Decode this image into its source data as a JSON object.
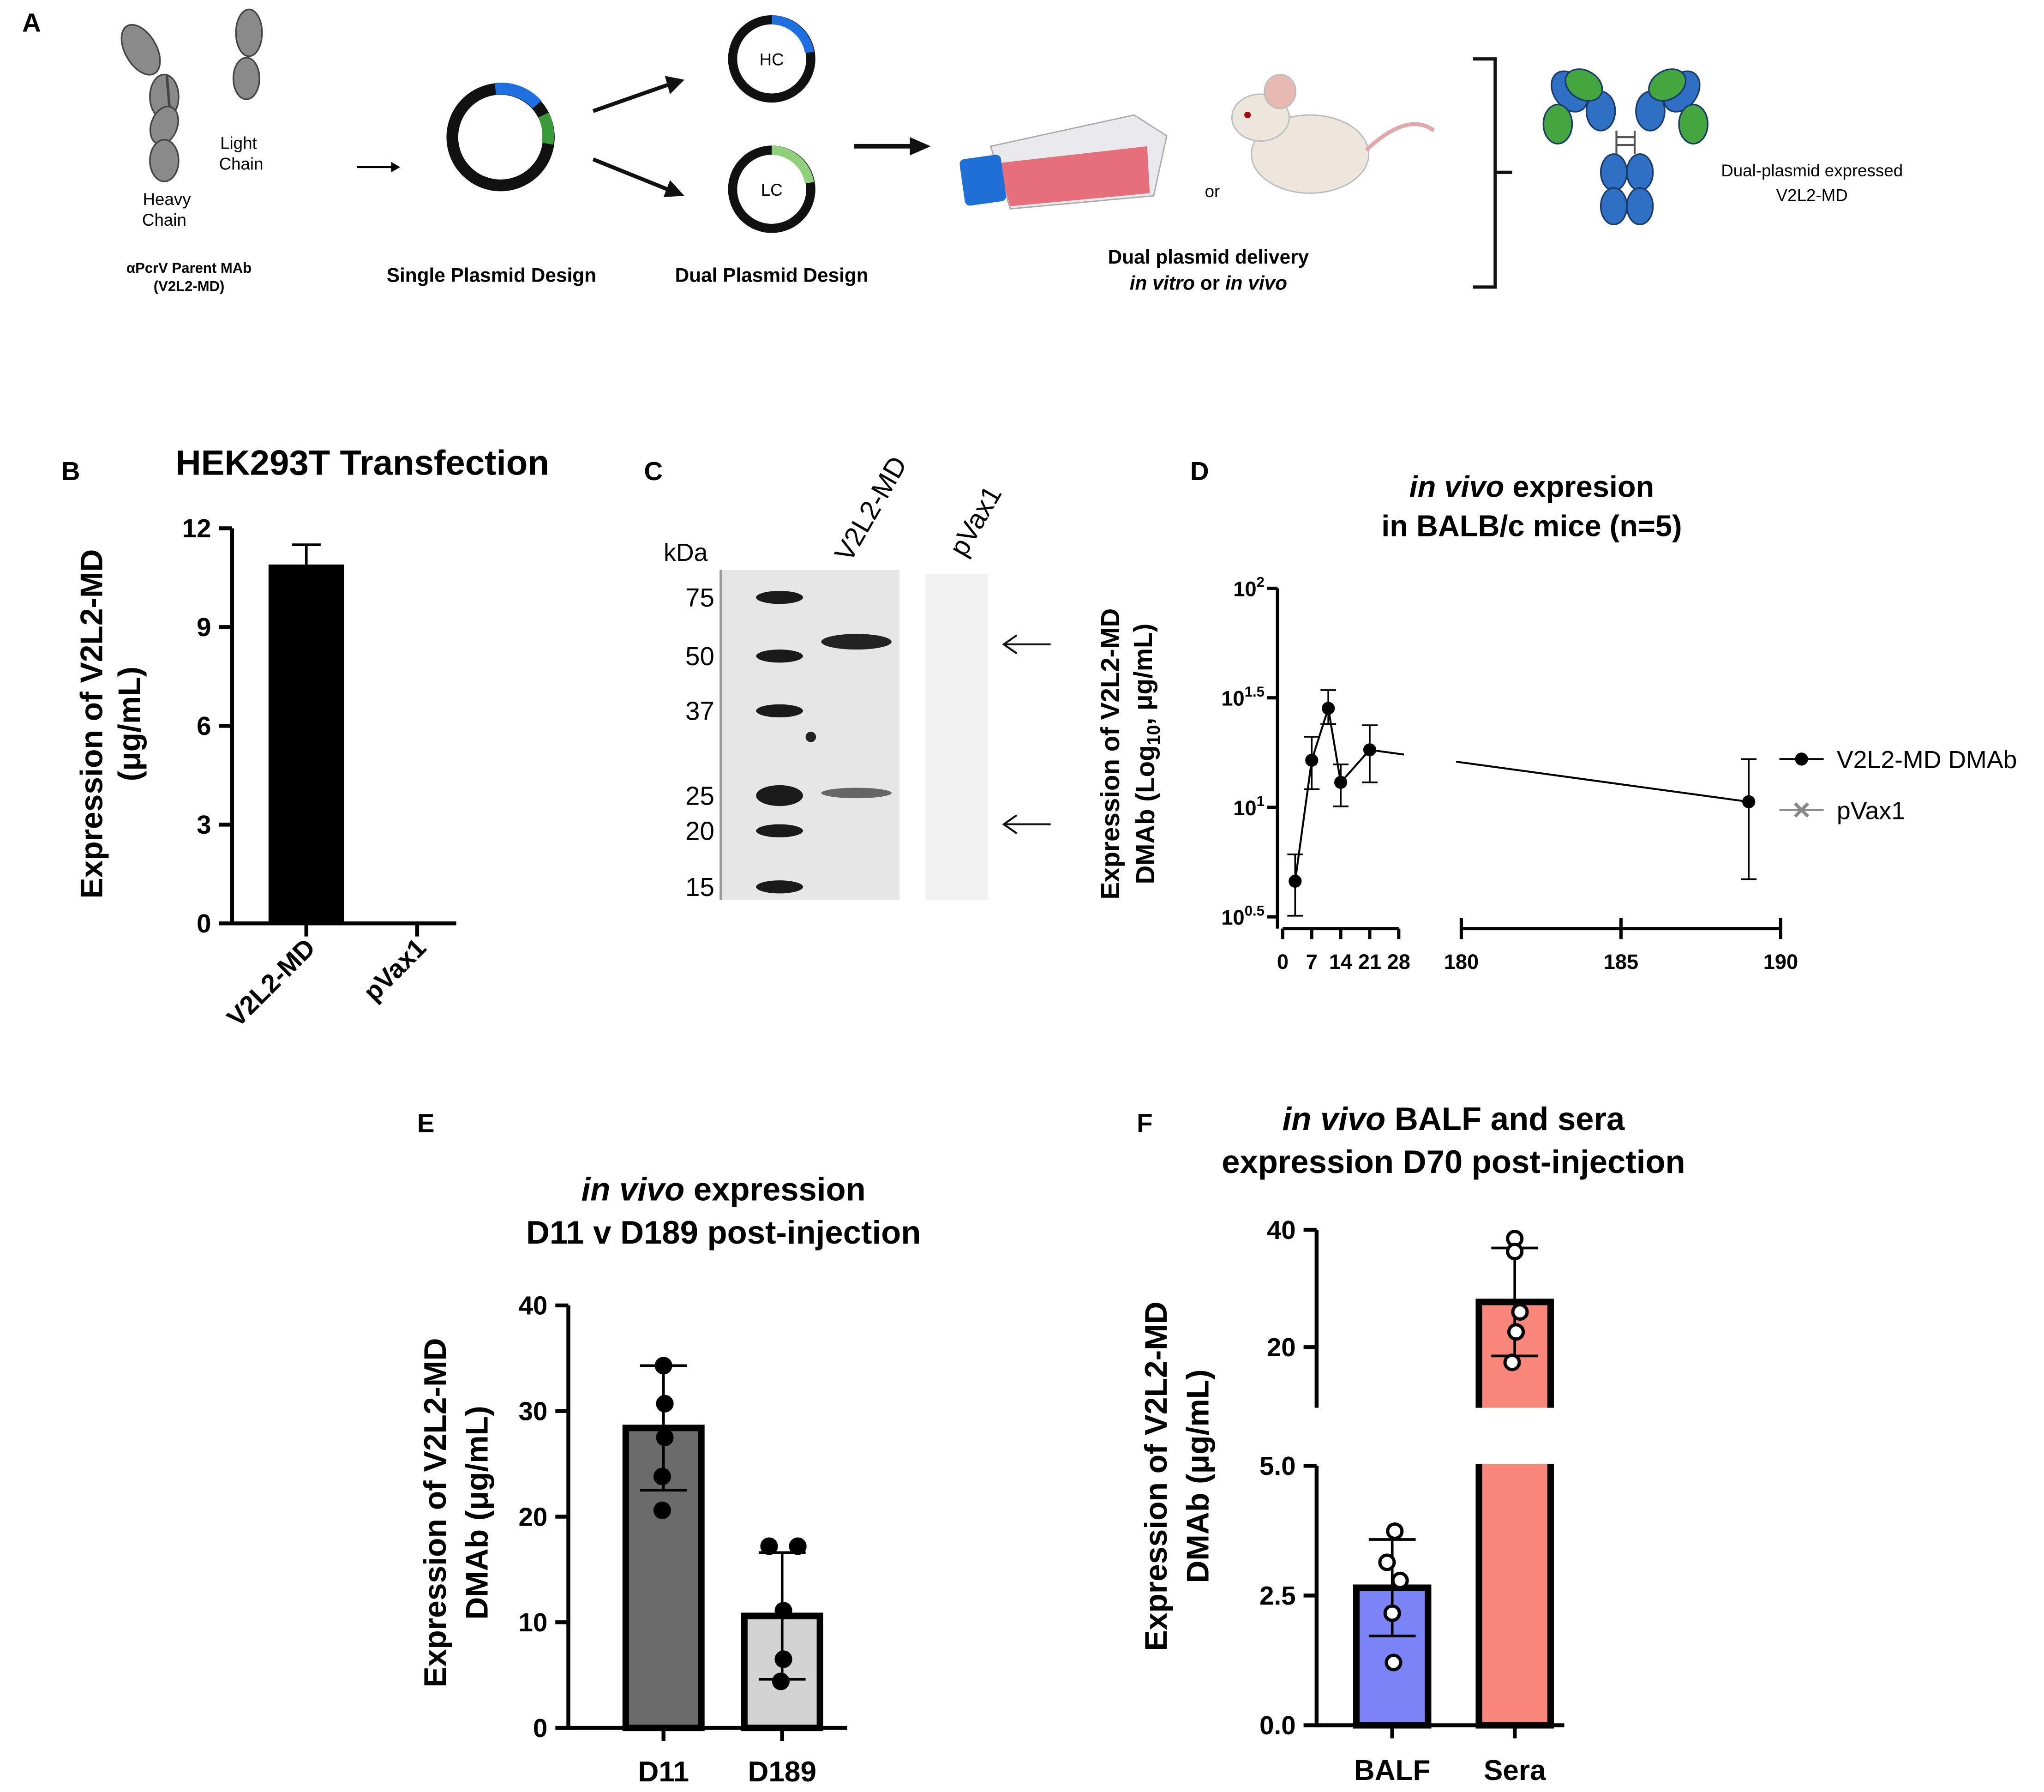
{
  "panel_labels": [
    "A",
    "B",
    "C",
    "D",
    "E",
    "F"
  ],
  "diagram": {
    "light_chain": [
      "Light",
      "Chain"
    ],
    "heavy_chain": [
      "Heavy",
      "Chain"
    ],
    "parent_mab": [
      "αPcrV Parent MAb",
      "(V2L2-MD)"
    ],
    "single_plasmid": "Single Plasmid Design",
    "hc": "HC",
    "lc": "LC",
    "dual_plasmid": "Dual Plasmid Design",
    "delivery": [
      [
        {
          "text": "Dual plasmid delivery"
        }
      ],
      [
        {
          "text": "in vitro",
          "italic": true
        },
        {
          "text": " or "
        },
        {
          "text": "in vivo",
          "italic": true
        }
      ]
    ],
    "or": "or",
    "expressed": [
      "Dual-plasmid expressed",
      "V2L2-MD"
    ]
  },
  "gel": {
    "unit": "kDa",
    "markers": [
      75,
      50,
      37,
      25,
      20,
      15
    ],
    "lanes": [
      "V2L2-MD",
      "pVax1"
    ]
  },
  "chart_data": [
    {
      "type": "bar",
      "title": [
        [
          {
            "text": "HEK293T Transfection"
          }
        ]
      ],
      "ylabel": [
        "Expression of V2L2-MD",
        "(μg/mL)"
      ],
      "categories": [
        "V2L2-MD",
        "pVax1"
      ],
      "values": [
        10.9,
        0
      ],
      "errors": [
        0.6,
        0
      ],
      "error_direction": "up",
      "colors": [
        "#000000",
        "#000000"
      ],
      "edgecolor": "#000000",
      "ylim": [
        0,
        12
      ],
      "yticks": [
        0,
        3,
        6,
        9,
        12
      ]
    },
    {
      "type": "line",
      "title": [
        [
          {
            "text": "in vivo",
            "italic": true
          },
          {
            "text": " expresion"
          }
        ],
        [
          {
            "text": "in BALB/c mice (n=5)"
          }
        ]
      ],
      "ylabel": [
        "Expression of V2L2-MD",
        [
          {
            "text": "DMAb (Log"
          },
          {
            "text": "10",
            "sub": true
          },
          {
            "text": ", μg/mL)"
          }
        ]
      ],
      "x": [
        3,
        7,
        11,
        14,
        21,
        189
      ],
      "xlim_segments": [
        [
          0,
          28
        ],
        [
          180,
          190
        ]
      ],
      "xticks": [
        0,
        7,
        14,
        21,
        28,
        180,
        185,
        190
      ],
      "log_y": true,
      "ylim": [
        3.1623,
        100
      ],
      "yticks": [
        {
          "value": 3.1623,
          "label": "10",
          "exponent": "0.5"
        },
        {
          "value": 10,
          "label": "10",
          "exponent": "1"
        },
        {
          "value": 31.623,
          "label": "10",
          "exponent": "1.5"
        },
        {
          "value": 100,
          "label": "10",
          "exponent": "2"
        }
      ],
      "legend": "right",
      "series": [
        {
          "name": "V2L2-MD DMAb",
          "color": "#000000",
          "marker": "o",
          "values": [
            4.6,
            16.4,
            28.3,
            13.0,
            18.3,
            10.6
          ],
          "yerr_lo": [
            3.2,
            12.1,
            24.0,
            10.1,
            13.0,
            4.7
          ],
          "yerr_hi": [
            6.1,
            21.0,
            34.3,
            15.7,
            23.7,
            16.6
          ]
        },
        {
          "name": "pVax1",
          "color": "#888888",
          "marker": "x",
          "values": [
            null,
            null,
            null,
            null,
            null,
            null
          ]
        }
      ]
    },
    {
      "type": "bar",
      "title": [
        [
          {
            "text": "in vivo",
            "italic": true
          },
          {
            "text": " expression"
          }
        ],
        [
          {
            "text": "D11 v D189 post-injection"
          }
        ]
      ],
      "ylabel": [
        "Expression of V2L2-MD",
        "DMAb (μg/mL)"
      ],
      "categories": [
        "D11",
        "D189"
      ],
      "values": [
        28.4,
        10.6
      ],
      "errors": [
        5.9,
        6.0
      ],
      "colors": [
        "#6b6b6b",
        "#d3d3d3"
      ],
      "edgecolor": "#000000",
      "points": [
        [
          34.3,
          30.7,
          27.5,
          23.8,
          20.6
        ],
        [
          17.2,
          17.2,
          11.1,
          6.5,
          4.4
        ]
      ],
      "point_fill": "#000000",
      "ylim": [
        0,
        40
      ],
      "yticks": [
        0,
        10,
        20,
        30,
        40
      ]
    },
    {
      "type": "bar",
      "title": [
        [
          {
            "text": "in vivo",
            "italic": true
          },
          {
            "text": " BALF and sera"
          }
        ],
        [
          {
            "text": "expression D70 post-injection"
          }
        ]
      ],
      "ylabel": [
        "Expression of V2L2-MD",
        "DMAb (μg/mL)"
      ],
      "categories": [
        "BALF",
        "Sera"
      ],
      "values": [
        2.65,
        27.7
      ],
      "errors": [
        0.93,
        9.2
      ],
      "colors": [
        "#7b84f6",
        "#f8867b"
      ],
      "edgecolor": "#000000",
      "points": [
        [
          3.74,
          3.14,
          2.79,
          2.16,
          1.21
        ],
        [
          38.5,
          36.3,
          26.0,
          22.6,
          17.4
        ]
      ],
      "point_fill": "#ffffff",
      "ylim_segments": [
        [
          0,
          5
        ],
        [
          10,
          40
        ]
      ],
      "yticks": [
        {
          "value": 0,
          "label": "0.0"
        },
        {
          "value": 2.5,
          "label": "2.5"
        },
        {
          "value": 5,
          "label": "5.0"
        },
        20,
        40
      ]
    }
  ]
}
